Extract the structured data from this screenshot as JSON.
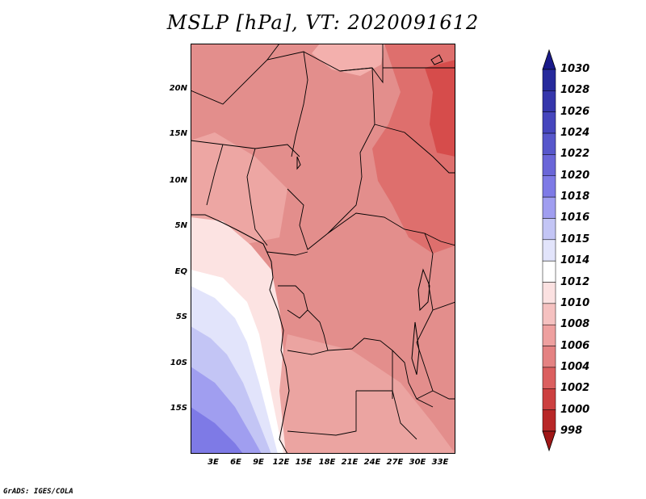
{
  "title": "MSLP [hPa], VT: 2020091612",
  "credit": "GrADS: IGES/COLA",
  "map": {
    "variable": "MSLP",
    "units": "hPa",
    "valid_time": "2020091612",
    "lat_ticks": [
      "20N",
      "15N",
      "10N",
      "5N",
      "EQ",
      "5S",
      "10S",
      "15S"
    ],
    "lon_ticks": [
      "3E",
      "6E",
      "9E",
      "12E",
      "15E",
      "18E",
      "21E",
      "24E",
      "27E",
      "30E",
      "33E"
    ]
  },
  "colorbar": {
    "labels": [
      "1030",
      "1028",
      "1026",
      "1024",
      "1022",
      "1020",
      "1018",
      "1016",
      "1015",
      "1014",
      "1012",
      "1010",
      "1008",
      "1006",
      "1004",
      "1002",
      "1000",
      "998"
    ],
    "colors": [
      "#1a1a8a",
      "#262a9c",
      "#3536ab",
      "#4646bd",
      "#5757cb",
      "#6a66d8",
      "#7e7ae6",
      "#a09ef0",
      "#c3c5f5",
      "#e2e4fb",
      "#ffffff",
      "#fbe1e1",
      "#f5c1c0",
      "#eea09f",
      "#e48282",
      "#db5f5f",
      "#cc4040",
      "#b82727",
      "#a01717"
    ]
  }
}
